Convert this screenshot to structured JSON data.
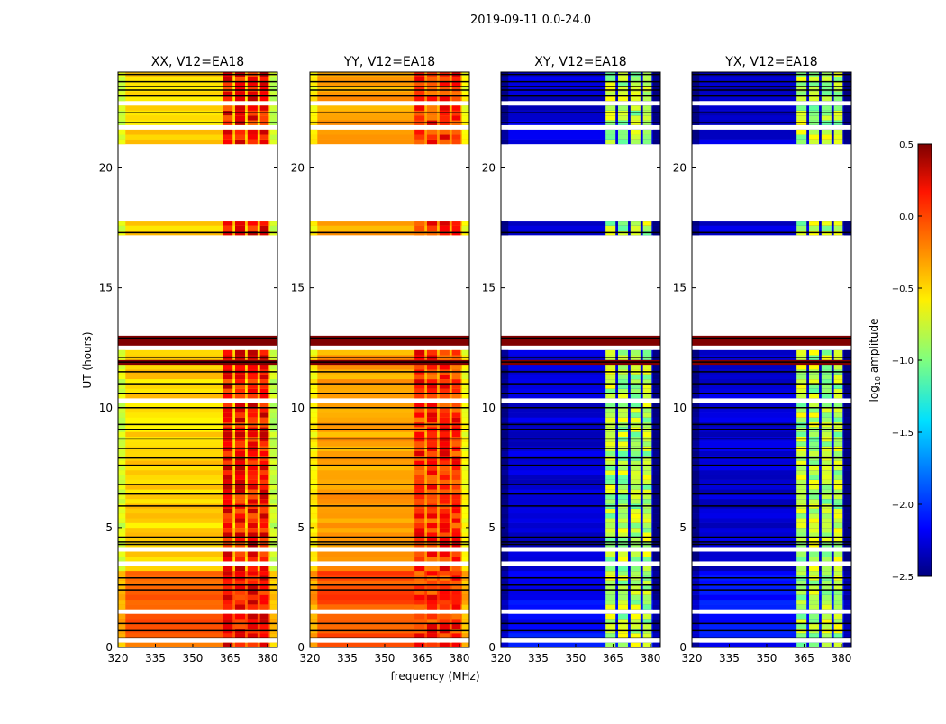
{
  "chart_data": {
    "type": "heatmap",
    "suptitle": "2019-09-11 0.0-24.0",
    "xlabel": "frequency (MHz)",
    "ylabel": "UT (hours)",
    "xlim": [
      320,
      384
    ],
    "ylim": [
      0,
      24
    ],
    "xticks": [
      320,
      335,
      350,
      365,
      380
    ],
    "yticks": [
      0,
      5,
      10,
      15,
      20
    ],
    "colorbar": {
      "label": "log10 amplitude",
      "label_main": "log",
      "label_sub": "10",
      "label_rest": " amplitude",
      "range": [
        -2.5,
        0.5
      ],
      "ticks": [
        "0.5",
        "0.0",
        "−0.5",
        "−1.0",
        "−1.5",
        "−2.0",
        "−2.5"
      ],
      "tick_values": [
        0.5,
        0.0,
        -0.5,
        -1.0,
        -1.5,
        -2.0,
        -2.5
      ],
      "colormap": "jet"
    },
    "panels": [
      {
        "title": "XX, V12=EA18",
        "base": -0.5,
        "early_base": -0.15,
        "rfi": 0.05
      },
      {
        "title": "YY, V12=EA18",
        "base": -0.35,
        "early_base": -0.1,
        "rfi": -0.05
      },
      {
        "title": "XY, V12=EA18",
        "base": -2.25,
        "early_base": -2.1,
        "rfi": -0.9
      },
      {
        "title": "YX, V12=EA18",
        "base": -2.25,
        "early_base": -2.1,
        "rfi": -0.9
      }
    ],
    "rfi_channels_mhz": [
      [
        362,
        366
      ],
      [
        367,
        371
      ],
      [
        372,
        376
      ],
      [
        377,
        380.5
      ]
    ],
    "flagged_hours": [
      [
        13.0,
        17.25
      ],
      [
        17.85,
        21.0
      ],
      [
        21.65,
        21.85
      ],
      [
        22.5,
        22.7
      ],
      [
        12.4,
        12.5
      ],
      [
        10.1,
        10.3
      ],
      [
        9.5,
        9.6
      ],
      [
        5.55,
        5.7
      ],
      [
        4.0,
        4.2
      ],
      [
        3.4,
        3.6
      ],
      [
        1.45,
        1.55
      ],
      [
        0.85,
        0.9
      ],
      [
        0.3,
        0.35
      ]
    ],
    "saturated_hours": [
      [
        12.55,
        12.95
      ],
      [
        11.85,
        12.05
      ]
    ],
    "black_line_hours": [
      23.9,
      23.6,
      23.4,
      23.25,
      23.0,
      22.3,
      21.9,
      17.3,
      12.9,
      12.1,
      11.9,
      11.5,
      11.0,
      10.6,
      10.0,
      9.3,
      9.1,
      8.7,
      8.3,
      7.9,
      7.6,
      6.8,
      6.4,
      5.9,
      4.6,
      4.4,
      4.3,
      2.9,
      2.6,
      2.4,
      1.0,
      0.7,
      0.4
    ]
  }
}
